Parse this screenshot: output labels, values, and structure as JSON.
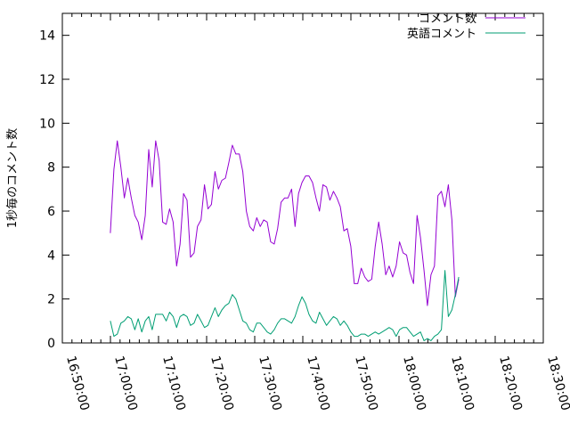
{
  "chart_data": {
    "type": "line",
    "title": "",
    "xlabel": "",
    "ylabel": "1秒毎のコメント数",
    "xlim": [
      "16:50:00",
      "18:30:00"
    ],
    "ylim": [
      0,
      15
    ],
    "x_ticks": [
      "16:50:00",
      "17:00:00",
      "17:10:00",
      "17:20:00",
      "17:30:00",
      "17:40:00",
      "17:50:00",
      "18:00:00",
      "18:10:00",
      "18:20:00",
      "18:30:00"
    ],
    "y_ticks": [
      0,
      2,
      4,
      6,
      8,
      10,
      12,
      14
    ],
    "grid": false,
    "legend_position": "top-right",
    "series": [
      {
        "name": "コメント数",
        "color": "#9400d3",
        "points": [
          [
            "16:59:59",
            5.0
          ],
          [
            "17:00:43",
            7.9
          ],
          [
            "17:01:26",
            9.2
          ],
          [
            "17:02:10",
            8.0
          ],
          [
            "17:02:53",
            6.6
          ],
          [
            "17:03:37",
            7.5
          ],
          [
            "17:04:20",
            6.6
          ],
          [
            "17:05:04",
            5.8
          ],
          [
            "17:05:47",
            5.5
          ],
          [
            "17:06:31",
            4.7
          ],
          [
            "17:07:14",
            5.8
          ],
          [
            "17:07:58",
            8.8
          ],
          [
            "17:08:41",
            7.1
          ],
          [
            "17:09:24",
            9.2
          ],
          [
            "17:10:08",
            8.3
          ],
          [
            "17:10:51",
            5.5
          ],
          [
            "17:11:35",
            5.4
          ],
          [
            "17:12:18",
            6.1
          ],
          [
            "17:13:02",
            5.5
          ],
          [
            "17:13:45",
            3.5
          ],
          [
            "17:14:29",
            4.5
          ],
          [
            "17:15:12",
            6.8
          ],
          [
            "17:15:56",
            6.5
          ],
          [
            "17:16:39",
            3.9
          ],
          [
            "17:17:23",
            4.1
          ],
          [
            "17:18:06",
            5.3
          ],
          [
            "17:18:50",
            5.6
          ],
          [
            "17:19:33",
            7.2
          ],
          [
            "17:20:17",
            6.1
          ],
          [
            "17:21:00",
            6.3
          ],
          [
            "17:21:44",
            7.8
          ],
          [
            "17:22:27",
            7.0
          ],
          [
            "17:23:10",
            7.4
          ],
          [
            "17:23:54",
            7.5
          ],
          [
            "17:24:37",
            8.2
          ],
          [
            "17:25:21",
            9.0
          ],
          [
            "17:26:04",
            8.6
          ],
          [
            "17:26:48",
            8.6
          ],
          [
            "17:27:31",
            7.8
          ],
          [
            "17:28:15",
            6.0
          ],
          [
            "17:28:58",
            5.3
          ],
          [
            "17:29:42",
            5.1
          ],
          [
            "17:30:25",
            5.7
          ],
          [
            "17:31:09",
            5.3
          ],
          [
            "17:31:52",
            5.6
          ],
          [
            "17:32:36",
            5.5
          ],
          [
            "17:33:19",
            4.6
          ],
          [
            "17:34:03",
            4.5
          ],
          [
            "17:34:46",
            5.2
          ],
          [
            "17:35:29",
            6.4
          ],
          [
            "17:36:13",
            6.6
          ],
          [
            "17:36:56",
            6.6
          ],
          [
            "17:37:40",
            7.0
          ],
          [
            "17:38:23",
            5.3
          ],
          [
            "17:39:07",
            6.8
          ],
          [
            "17:39:50",
            7.3
          ],
          [
            "17:40:34",
            7.6
          ],
          [
            "17:41:17",
            7.6
          ],
          [
            "17:42:01",
            7.3
          ],
          [
            "17:42:44",
            6.6
          ],
          [
            "17:43:28",
            6.0
          ],
          [
            "17:44:11",
            7.2
          ],
          [
            "17:44:55",
            7.1
          ],
          [
            "17:45:38",
            6.5
          ],
          [
            "17:46:22",
            6.9
          ],
          [
            "17:47:05",
            6.6
          ],
          [
            "17:47:48",
            6.2
          ],
          [
            "17:48:32",
            5.1
          ],
          [
            "17:49:15",
            5.2
          ],
          [
            "17:49:59",
            4.4
          ],
          [
            "17:50:42",
            2.7
          ],
          [
            "17:51:26",
            2.7
          ],
          [
            "17:52:09",
            3.4
          ],
          [
            "17:52:53",
            3.0
          ],
          [
            "17:53:36",
            2.8
          ],
          [
            "17:54:20",
            2.9
          ],
          [
            "17:55:03",
            4.4
          ],
          [
            "17:55:47",
            5.5
          ],
          [
            "17:56:30",
            4.5
          ],
          [
            "17:57:14",
            3.1
          ],
          [
            "17:57:57",
            3.5
          ],
          [
            "17:58:41",
            3.0
          ],
          [
            "17:59:24",
            3.5
          ],
          [
            "18:00:07",
            4.6
          ],
          [
            "18:00:51",
            4.1
          ],
          [
            "18:01:34",
            4.0
          ],
          [
            "18:02:18",
            3.2
          ],
          [
            "18:03:01",
            2.7
          ],
          [
            "18:03:45",
            5.8
          ],
          [
            "18:04:28",
            4.8
          ],
          [
            "18:05:12",
            3.3
          ],
          [
            "18:05:55",
            1.7
          ],
          [
            "18:06:39",
            3.1
          ],
          [
            "18:07:22",
            3.5
          ],
          [
            "18:08:06",
            6.7
          ],
          [
            "18:08:49",
            6.9
          ],
          [
            "18:09:33",
            6.2
          ],
          [
            "18:10:16",
            7.2
          ],
          [
            "18:11:00",
            5.6
          ],
          [
            "18:11:43",
            2.1
          ],
          [
            "18:12:26",
            2.9
          ]
        ]
      },
      {
        "name": "英語コメント",
        "color": "#009e73",
        "points": [
          [
            "16:59:59",
            1.0
          ],
          [
            "17:00:43",
            0.3
          ],
          [
            "17:01:26",
            0.4
          ],
          [
            "17:02:10",
            0.9
          ],
          [
            "17:02:53",
            1.0
          ],
          [
            "17:03:37",
            1.2
          ],
          [
            "17:04:20",
            1.1
          ],
          [
            "17:05:04",
            0.6
          ],
          [
            "17:05:47",
            1.1
          ],
          [
            "17:06:31",
            0.5
          ],
          [
            "17:07:14",
            1.0
          ],
          [
            "17:07:58",
            1.2
          ],
          [
            "17:08:41",
            0.6
          ],
          [
            "17:09:24",
            1.3
          ],
          [
            "17:10:08",
            1.3
          ],
          [
            "17:10:51",
            1.3
          ],
          [
            "17:11:35",
            1.0
          ],
          [
            "17:12:18",
            1.4
          ],
          [
            "17:13:02",
            1.2
          ],
          [
            "17:13:45",
            0.7
          ],
          [
            "17:14:29",
            1.2
          ],
          [
            "17:15:12",
            1.3
          ],
          [
            "17:15:56",
            1.2
          ],
          [
            "17:16:39",
            0.8
          ],
          [
            "17:17:23",
            0.9
          ],
          [
            "17:18:06",
            1.3
          ],
          [
            "17:18:50",
            1.0
          ],
          [
            "17:19:33",
            0.7
          ],
          [
            "17:20:17",
            0.8
          ],
          [
            "17:21:00",
            1.2
          ],
          [
            "17:21:44",
            1.6
          ],
          [
            "17:22:27",
            1.2
          ],
          [
            "17:23:10",
            1.5
          ],
          [
            "17:23:54",
            1.7
          ],
          [
            "17:24:37",
            1.8
          ],
          [
            "17:25:21",
            2.2
          ],
          [
            "17:26:04",
            2.0
          ],
          [
            "17:26:48",
            1.5
          ],
          [
            "17:27:31",
            1.0
          ],
          [
            "17:28:15",
            0.9
          ],
          [
            "17:28:58",
            0.6
          ],
          [
            "17:29:42",
            0.5
          ],
          [
            "17:30:25",
            0.9
          ],
          [
            "17:31:09",
            0.9
          ],
          [
            "17:31:52",
            0.7
          ],
          [
            "17:32:36",
            0.5
          ],
          [
            "17:33:19",
            0.4
          ],
          [
            "17:34:03",
            0.6
          ],
          [
            "17:34:46",
            0.9
          ],
          [
            "17:35:29",
            1.1
          ],
          [
            "17:36:13",
            1.1
          ],
          [
            "17:36:56",
            1.0
          ],
          [
            "17:37:40",
            0.9
          ],
          [
            "17:38:23",
            1.2
          ],
          [
            "17:39:07",
            1.7
          ],
          [
            "17:39:50",
            2.1
          ],
          [
            "17:40:34",
            1.8
          ],
          [
            "17:41:17",
            1.3
          ],
          [
            "17:42:01",
            1.0
          ],
          [
            "17:42:44",
            0.9
          ],
          [
            "17:43:28",
            1.4
          ],
          [
            "17:44:11",
            1.1
          ],
          [
            "17:44:55",
            0.8
          ],
          [
            "17:45:38",
            1.0
          ],
          [
            "17:46:22",
            1.2
          ],
          [
            "17:47:05",
            1.1
          ],
          [
            "17:47:48",
            0.8
          ],
          [
            "17:48:32",
            1.0
          ],
          [
            "17:49:15",
            0.8
          ],
          [
            "17:49:59",
            0.5
          ],
          [
            "17:50:42",
            0.3
          ],
          [
            "17:51:26",
            0.3
          ],
          [
            "17:52:09",
            0.4
          ],
          [
            "17:52:53",
            0.4
          ],
          [
            "17:53:36",
            0.3
          ],
          [
            "17:54:20",
            0.4
          ],
          [
            "17:55:03",
            0.5
          ],
          [
            "17:55:47",
            0.4
          ],
          [
            "17:56:30",
            0.5
          ],
          [
            "17:57:14",
            0.6
          ],
          [
            "17:57:57",
            0.7
          ],
          [
            "17:58:41",
            0.6
          ],
          [
            "17:59:24",
            0.3
          ],
          [
            "18:00:07",
            0.6
          ],
          [
            "18:00:51",
            0.7
          ],
          [
            "18:01:34",
            0.7
          ],
          [
            "18:02:18",
            0.5
          ],
          [
            "18:03:01",
            0.3
          ],
          [
            "18:03:45",
            0.4
          ],
          [
            "18:04:28",
            0.5
          ],
          [
            "18:05:12",
            0.1
          ],
          [
            "18:05:55",
            0.2
          ],
          [
            "18:06:39",
            0.1
          ],
          [
            "18:07:22",
            0.3
          ],
          [
            "18:08:06",
            0.4
          ],
          [
            "18:08:49",
            0.6
          ],
          [
            "18:09:33",
            3.3
          ],
          [
            "18:10:16",
            1.2
          ],
          [
            "18:11:00",
            1.5
          ],
          [
            "18:11:43",
            2.2
          ],
          [
            "18:12:26",
            3.0
          ]
        ]
      }
    ]
  }
}
